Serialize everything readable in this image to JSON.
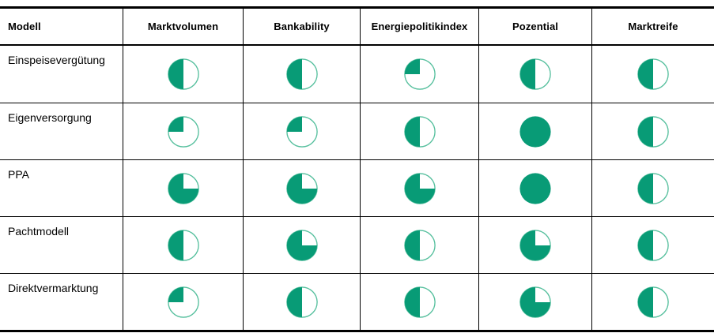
{
  "colors": {
    "harvey_fill": "#089b76",
    "harvey_ring": "#55bf9d",
    "grid_line": "#000000",
    "background": "#ffffff"
  },
  "table": {
    "columns": [
      "Modell",
      "Marktvolumen",
      "Bankability",
      "Energiepolitikindex",
      "Pozential",
      "Marktreife"
    ],
    "rows": [
      {
        "label": "Einspeisevergütung",
        "values": [
          50,
          50,
          25,
          50,
          50
        ]
      },
      {
        "label": "Eigenversorgung",
        "values": [
          25,
          25,
          50,
          100,
          50
        ]
      },
      {
        "label": "PPA",
        "values": [
          75,
          75,
          75,
          100,
          50
        ]
      },
      {
        "label": "Pachtmodell",
        "values": [
          50,
          75,
          50,
          75,
          50
        ]
      },
      {
        "label": "Direktvermarktung",
        "values": [
          25,
          50,
          50,
          75,
          50
        ]
      }
    ]
  },
  "chart_data": {
    "type": "table",
    "title": "",
    "columns": [
      "Modell",
      "Marktvolumen",
      "Bankability",
      "Energiepolitikindex",
      "Pozential",
      "Marktreife"
    ],
    "rows": [
      {
        "label": "Einspeisevergütung",
        "values": [
          50,
          50,
          25,
          50,
          50
        ]
      },
      {
        "label": "Eigenversorgung",
        "values": [
          25,
          25,
          50,
          100,
          50
        ]
      },
      {
        "label": "PPA",
        "values": [
          75,
          75,
          75,
          100,
          50
        ]
      },
      {
        "label": "Pachtmodell",
        "values": [
          50,
          75,
          50,
          75,
          50
        ]
      },
      {
        "label": "Direktvermarktung",
        "values": [
          25,
          50,
          50,
          75,
          50
        ]
      }
    ],
    "value_encoding": "harvey-ball, percent of circle filled counterclockwise from top",
    "values_unit": "percent",
    "legend_position": "none",
    "grid": "on"
  }
}
